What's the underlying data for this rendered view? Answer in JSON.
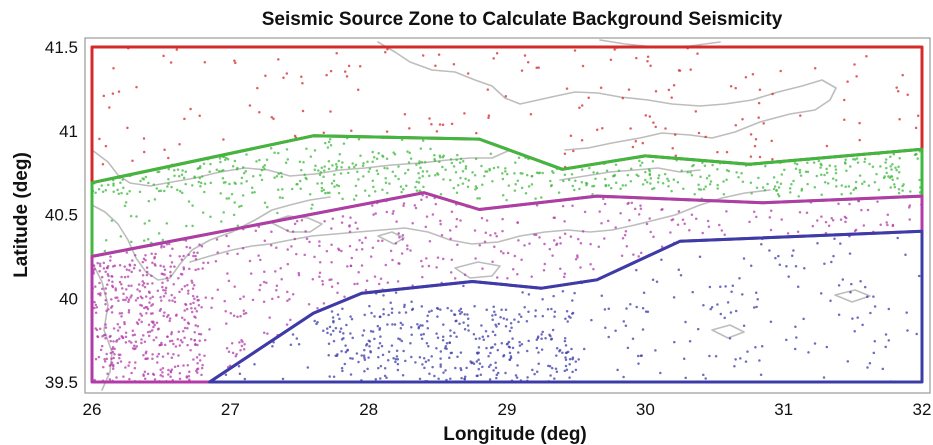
{
  "chart_data": {
    "type": "scatter",
    "title": "Seismic Source Zone to Calculate Background Seismicity",
    "xlabel": "Longitude (deg)",
    "ylabel": "Latitude (deg)",
    "xlim": [
      26,
      32
    ],
    "ylim": [
      39.5,
      41.5
    ],
    "x_ticks": [
      26,
      27,
      28,
      29,
      30,
      31,
      32
    ],
    "x_tick_labels": [
      "26",
      "27",
      "28",
      "29",
      "30",
      "31",
      "32"
    ],
    "y_ticks": [
      39.5,
      40,
      40.5,
      41,
      41.5
    ],
    "y_tick_labels": [
      "39.5",
      "40",
      "40.5",
      "41",
      "41.5"
    ],
    "grid": false,
    "basemap": "coastline",
    "zones": [
      {
        "color": "#d42a2a",
        "boundary": [
          [
            26,
            41.5
          ],
          [
            32,
            41.5
          ],
          [
            32,
            40.89
          ],
          [
            30.75,
            40.8
          ],
          [
            30,
            40.85
          ],
          [
            29.4,
            40.77
          ],
          [
            28.8,
            40.95
          ],
          [
            27.6,
            40.97
          ],
          [
            26,
            40.69
          ]
        ],
        "point_region": [
          [
            26,
            41.5
          ],
          [
            32,
            41.5
          ],
          [
            32,
            40.89
          ],
          [
            30.75,
            40.8
          ],
          [
            30,
            40.85
          ],
          [
            29.4,
            40.77
          ],
          [
            28.8,
            40.95
          ],
          [
            27.6,
            40.97
          ],
          [
            26,
            40.69
          ]
        ],
        "point_count": 170
      },
      {
        "color": "#3fb83f",
        "boundary": [
          [
            26,
            40.69
          ],
          [
            27.6,
            40.97
          ],
          [
            28.8,
            40.95
          ],
          [
            29.4,
            40.77
          ],
          [
            30,
            40.85
          ],
          [
            30.75,
            40.8
          ],
          [
            32,
            40.89
          ],
          [
            32,
            40.61
          ],
          [
            30.85,
            40.57
          ],
          [
            29.65,
            40.61
          ],
          [
            28.8,
            40.53
          ],
          [
            28.4,
            40.63
          ],
          [
            26,
            40.25
          ]
        ],
        "point_region": [
          [
            26,
            40.69
          ],
          [
            27.6,
            40.97
          ],
          [
            28.8,
            40.95
          ],
          [
            29.4,
            40.77
          ],
          [
            30,
            40.85
          ],
          [
            30.75,
            40.8
          ],
          [
            32,
            40.89
          ],
          [
            32,
            40.61
          ],
          [
            30.85,
            40.57
          ],
          [
            29.65,
            40.61
          ],
          [
            28.8,
            40.53
          ],
          [
            28.4,
            40.63
          ],
          [
            26,
            40.25
          ]
        ],
        "point_count": 650
      },
      {
        "color": "#b23ba8",
        "boundary": [
          [
            26,
            40.25
          ],
          [
            28.4,
            40.63
          ],
          [
            28.8,
            40.53
          ],
          [
            29.65,
            40.61
          ],
          [
            30.85,
            40.57
          ],
          [
            32,
            40.61
          ],
          [
            32,
            40.4
          ],
          [
            30.25,
            40.34
          ],
          [
            29.65,
            40.11
          ],
          [
            29.25,
            40.06
          ],
          [
            28.75,
            40.1
          ],
          [
            27.95,
            40.03
          ],
          [
            27.6,
            39.91
          ],
          [
            26.85,
            39.5
          ],
          [
            26,
            39.5
          ]
        ],
        "point_region": [
          [
            26,
            40.25
          ],
          [
            28.4,
            40.63
          ],
          [
            28.8,
            40.53
          ],
          [
            29.65,
            40.61
          ],
          [
            30.85,
            40.57
          ],
          [
            32,
            40.61
          ],
          [
            32,
            40.4
          ],
          [
            30.25,
            40.34
          ],
          [
            29.65,
            40.11
          ],
          [
            29.25,
            40.06
          ],
          [
            28.75,
            40.1
          ],
          [
            27.95,
            40.03
          ],
          [
            27.6,
            39.91
          ],
          [
            26.85,
            39.5
          ],
          [
            26,
            39.5
          ]
        ],
        "point_count": 850
      },
      {
        "color": "#3c3ca8",
        "boundary": [
          [
            26.85,
            39.5
          ],
          [
            27.6,
            39.91
          ],
          [
            27.95,
            40.03
          ],
          [
            28.75,
            40.1
          ],
          [
            29.25,
            40.06
          ],
          [
            29.65,
            40.11
          ],
          [
            30.25,
            40.34
          ],
          [
            32,
            40.4
          ],
          [
            32,
            39.5
          ]
        ],
        "point_region": [
          [
            26.85,
            39.5
          ],
          [
            27.6,
            39.91
          ],
          [
            27.95,
            40.03
          ],
          [
            28.75,
            40.1
          ],
          [
            29.25,
            40.06
          ],
          [
            29.65,
            40.11
          ],
          [
            30.25,
            40.34
          ],
          [
            32,
            40.4
          ],
          [
            32,
            39.5
          ]
        ],
        "point_count": 560
      }
    ]
  }
}
